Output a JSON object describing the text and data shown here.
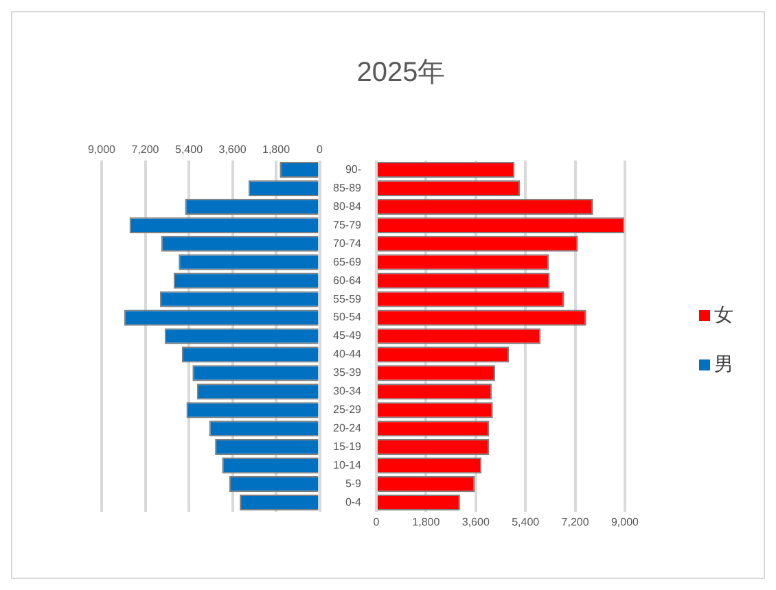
{
  "chart_data": [
    {
      "type": "bar",
      "orientation": "horizontal",
      "categories": [
        null,
        null,
        null,
        null,
        null,
        null,
        null,
        null,
        null,
        null,
        null,
        null,
        null,
        null,
        null,
        null,
        null,
        null,
        null
      ],
      "series": [
        {
          "name": "男",
          "color": "#0070c0",
          "values": [
            1650,
            2940,
            5560,
            7850,
            6540,
            5820,
            6030,
            6590,
            8070,
            6400,
            5690,
            5250,
            5060,
            5500,
            4560,
            4320,
            4030,
            3730,
            3300
          ]
        }
      ],
      "xlim": [
        9000,
        0
      ],
      "xticks": [
        {
          "value": 9000,
          "label": "9,000"
        },
        {
          "value": 7200,
          "label": "7,200"
        },
        {
          "value": 5400,
          "label": "5,400"
        },
        {
          "value": 3600,
          "label": "3,600"
        },
        {
          "value": 1800,
          "label": "1,800"
        },
        0
      ],
      "tick_labels": "x",
      "grid": "x",
      "legend": "right"
    },
    {
      "type": "bar",
      "orientation": "horizontal",
      "title": "2025年",
      "categories": [
        "90-",
        "85-89",
        "80-84",
        "75-79",
        "70-74",
        "65-69",
        "60-64",
        "55-59",
        "50-54",
        "45-49",
        "40-44",
        "35-39",
        "30-34",
        "25-29",
        "20-24",
        "15-19",
        "10-14",
        "5-9",
        "0-4"
      ],
      "series": [
        {
          "name": "女",
          "color": "#ff0000",
          "values": [
            5000,
            5200,
            7850,
            8980,
            7300,
            6250,
            6280,
            6800,
            7600,
            5950,
            4800,
            4300,
            4180,
            4220,
            4090,
            4090,
            3810,
            3570,
            3030
          ]
        }
      ],
      "xlim": [
        0,
        9000
      ],
      "xticks": [
        0,
        {
          "value": 1800,
          "label": "1,800"
        },
        {
          "value": 3600,
          "label": "3,600"
        },
        {
          "value": 5400,
          "label": "5,400"
        },
        {
          "value": 7200,
          "label": "7,200"
        },
        {
          "value": 9000,
          "label": "9,000"
        }
      ],
      "grid": "x",
      "legend": "right"
    }
  ]
}
